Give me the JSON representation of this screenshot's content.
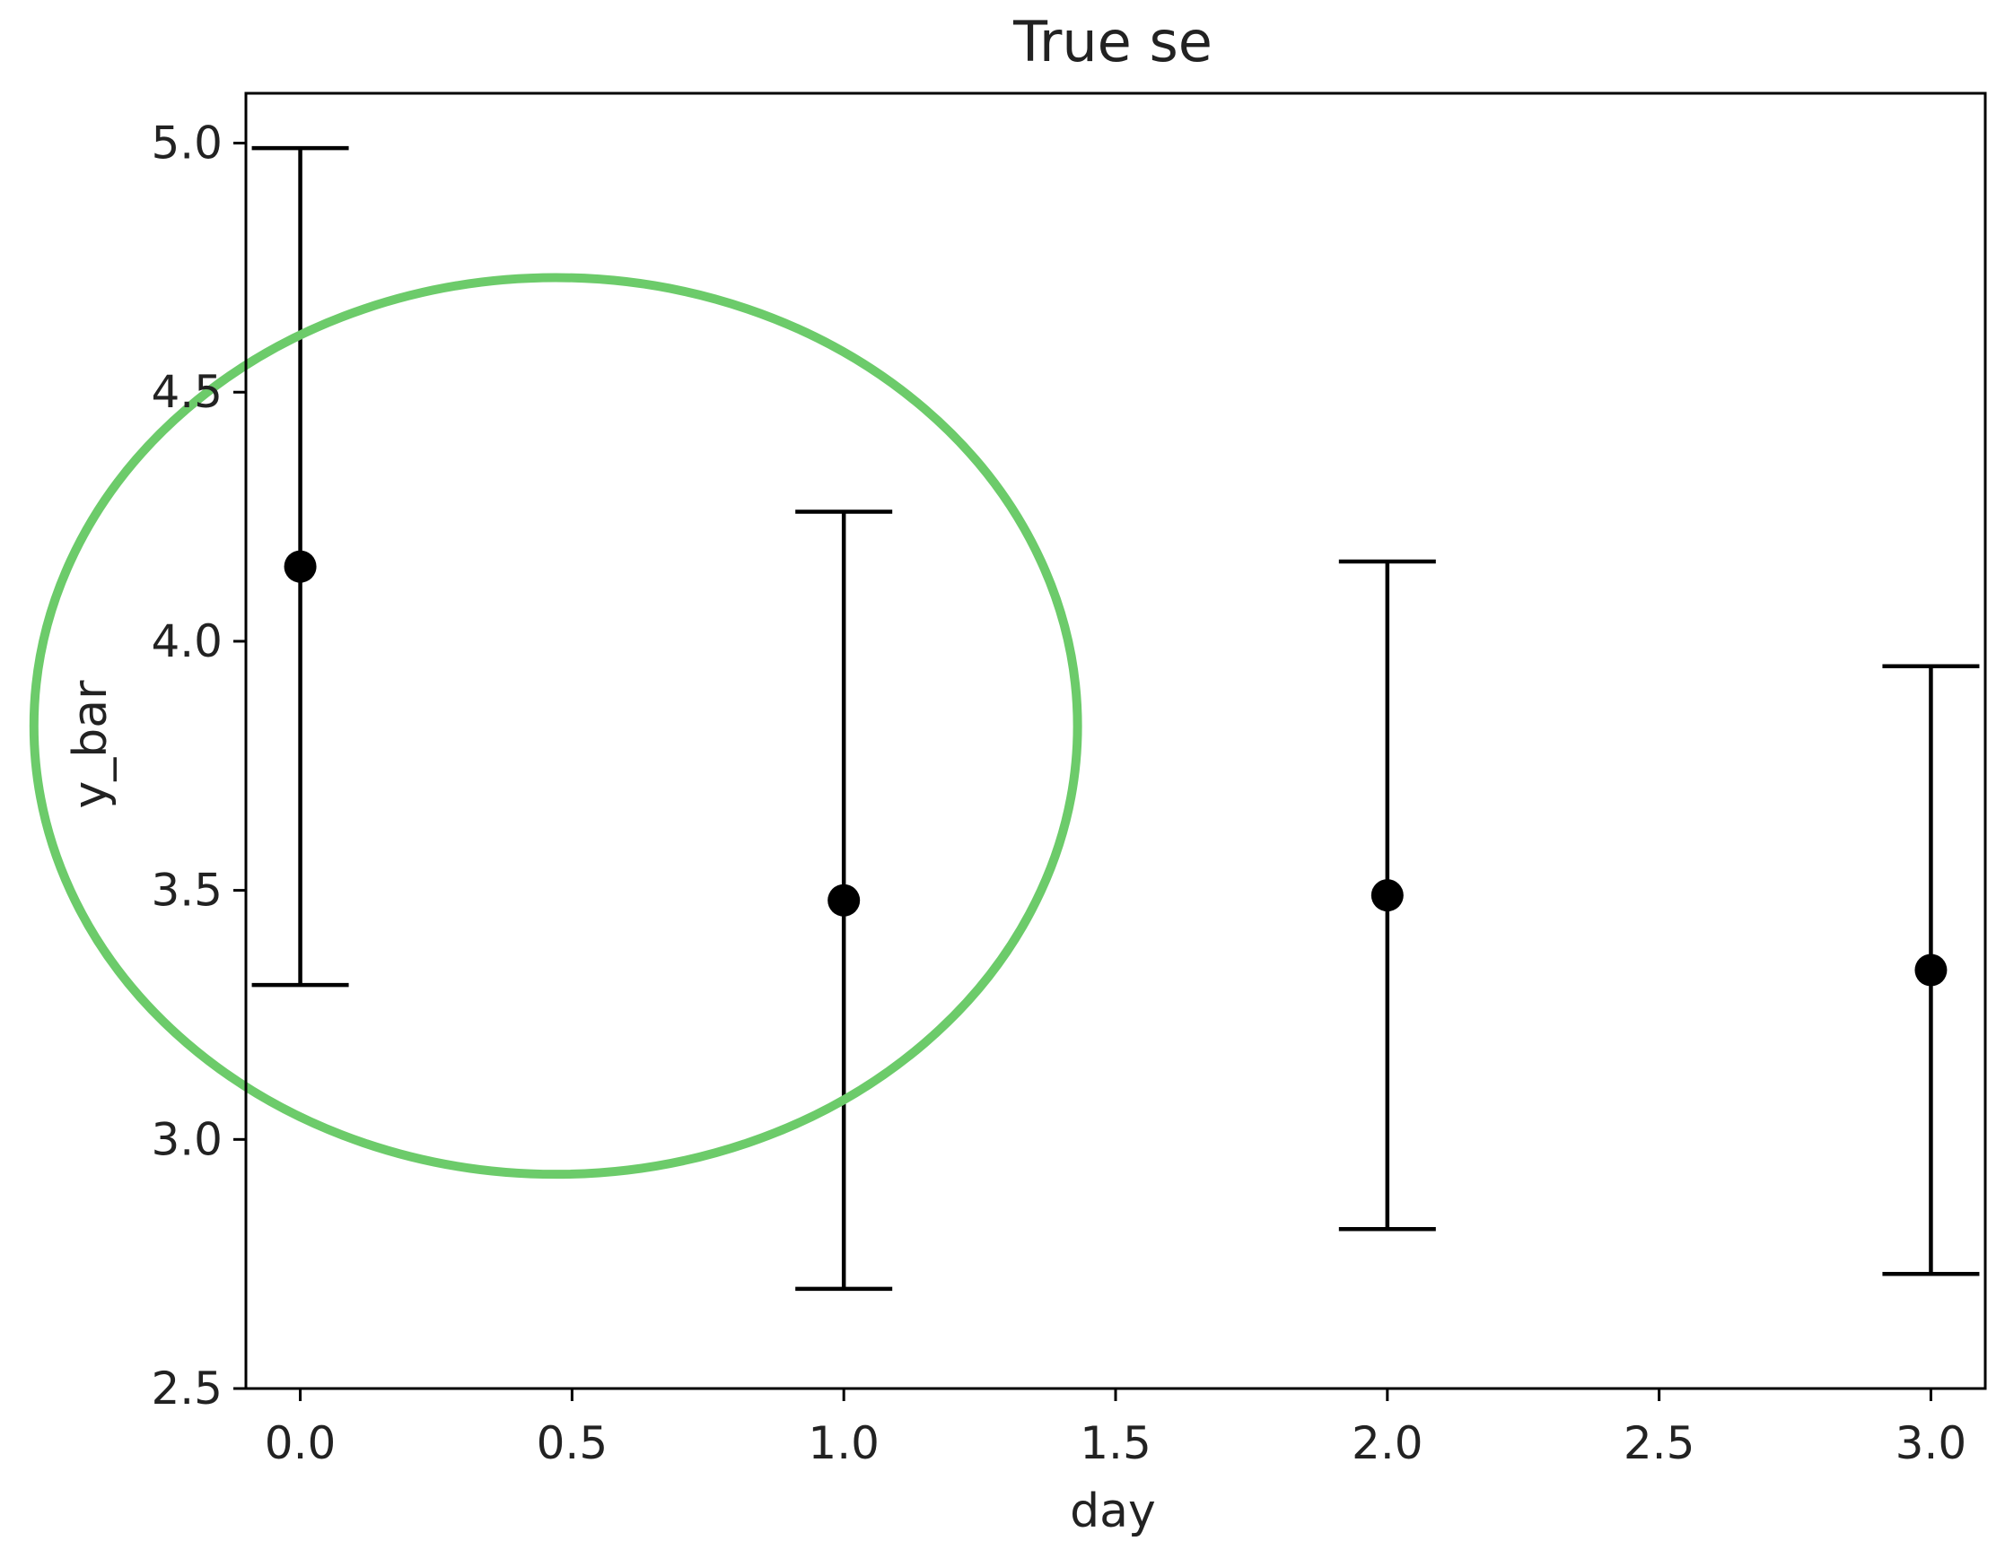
{
  "chart_data": {
    "type": "scatter",
    "title": "True se",
    "xlabel": "day",
    "ylabel": "y_bar",
    "xlim": [
      -0.1,
      3.1
    ],
    "ylim": [
      2.5,
      5.1
    ],
    "xticks": [
      0.0,
      0.5,
      1.0,
      1.5,
      2.0,
      2.5,
      3.0
    ],
    "xtick_labels": [
      "0.0",
      "0.5",
      "1.0",
      "1.5",
      "2.0",
      "2.5",
      "3.0"
    ],
    "yticks": [
      2.5,
      3.0,
      3.5,
      4.0,
      4.5,
      5.0
    ],
    "ytick_labels": [
      "2.5",
      "3.0",
      "3.5",
      "4.0",
      "4.5",
      "5.0"
    ],
    "grid": false,
    "series": [
      {
        "x": [
          0,
          1,
          2,
          3
        ],
        "y": [
          4.15,
          3.48,
          3.49,
          3.34
        ],
        "yerr_lower": [
          3.31,
          2.7,
          2.82,
          2.73
        ],
        "yerr_upper": [
          4.99,
          4.26,
          4.16,
          3.95
        ],
        "color": "#000000",
        "marker": "circle",
        "error_bars": true
      }
    ],
    "annotations": [
      {
        "type": "ellipse",
        "center": [
          0.47,
          3.83
        ],
        "x_radius": 0.96,
        "y_radius": 0.9,
        "color": "#6ccb6a"
      }
    ]
  }
}
